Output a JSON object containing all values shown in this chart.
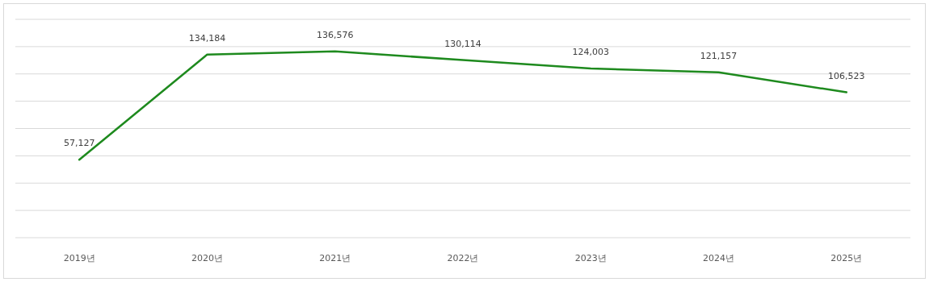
{
  "chart_data": {
    "type": "line",
    "categories": [
      "2019년",
      "2020년",
      "2021년",
      "2022년",
      "2023년",
      "2024년",
      "2025년"
    ],
    "series": [
      {
        "color": "#1e8a1e",
        "values": [
          57127,
          134184,
          136576,
          130114,
          124003,
          121157,
          106523
        ],
        "value_labels": [
          "57,127",
          "134,184",
          "136,576",
          "130,114",
          "124,003",
          "121,157",
          "106,523"
        ]
      }
    ],
    "grid": "y",
    "tick_labels": "x",
    "marker": "none",
    "line_style": "solid"
  }
}
